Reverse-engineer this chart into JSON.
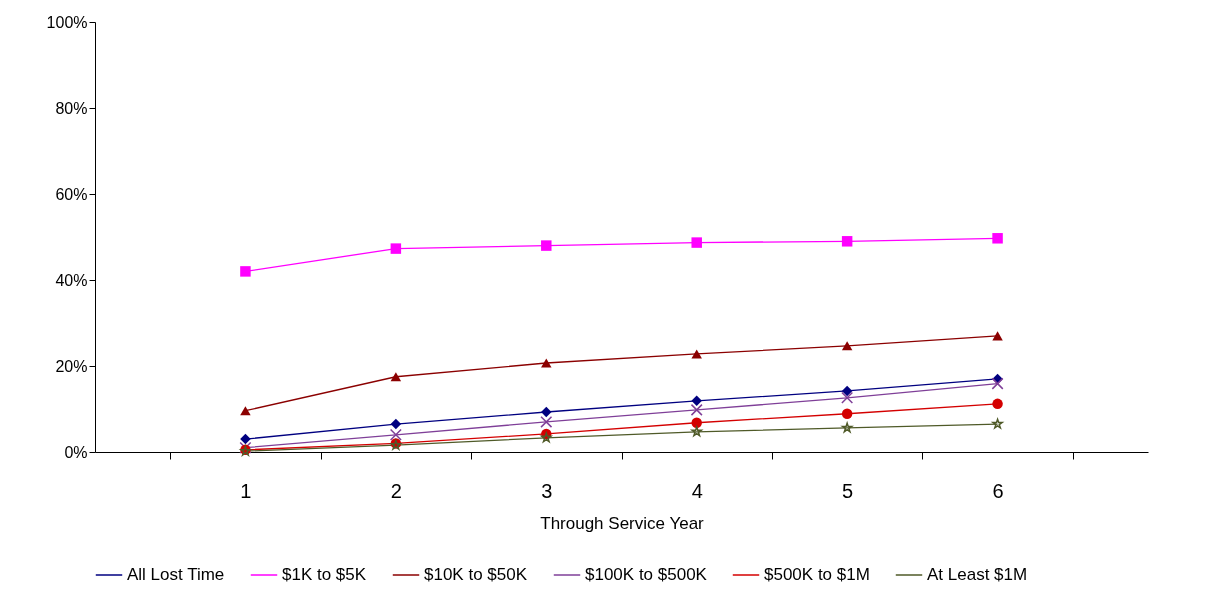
{
  "chart_data": {
    "type": "line",
    "xlabel": "Through Service Year",
    "categories": [
      "1",
      "2",
      "3",
      "4",
      "5",
      "6"
    ],
    "ylim": [
      0,
      100
    ],
    "yticks": [
      {
        "value": 0,
        "label": "0%"
      },
      {
        "value": 20,
        "label": "20%"
      },
      {
        "value": 40,
        "label": "40%"
      },
      {
        "value": 60,
        "label": "60%"
      },
      {
        "value": 80,
        "label": "80%"
      },
      {
        "value": 100,
        "label": "100%"
      }
    ],
    "grid": false,
    "legend": "bottom",
    "series": [
      {
        "name": "All Lost Time",
        "color": "#000080",
        "marker": "diamond",
        "values": [
          3.0,
          6.5,
          9.3,
          11.9,
          14.2,
          17.0
        ]
      },
      {
        "name": "$1K to $5K",
        "color": "#ff00ff",
        "marker": "square",
        "values": [
          42.0,
          47.3,
          48.0,
          48.7,
          49.0,
          49.7
        ]
      },
      {
        "name": "$10K to $50K",
        "color": "#8b0000",
        "marker": "triangle",
        "values": [
          9.6,
          17.5,
          20.7,
          22.8,
          24.7,
          27.0
        ]
      },
      {
        "name": "$100K to $500K",
        "color": "#7f3f98",
        "marker": "cross",
        "values": [
          1.0,
          4.0,
          7.0,
          9.8,
          12.6,
          15.9
        ]
      },
      {
        "name": "$500K to $1M",
        "color": "#d40000",
        "marker": "circle",
        "values": [
          0.5,
          2.0,
          4.2,
          6.8,
          8.9,
          11.2
        ]
      },
      {
        "name": "At Least $1M",
        "color": "#4f5a28",
        "marker": "star",
        "values": [
          0.2,
          1.6,
          3.3,
          4.7,
          5.6,
          6.5
        ]
      }
    ]
  }
}
